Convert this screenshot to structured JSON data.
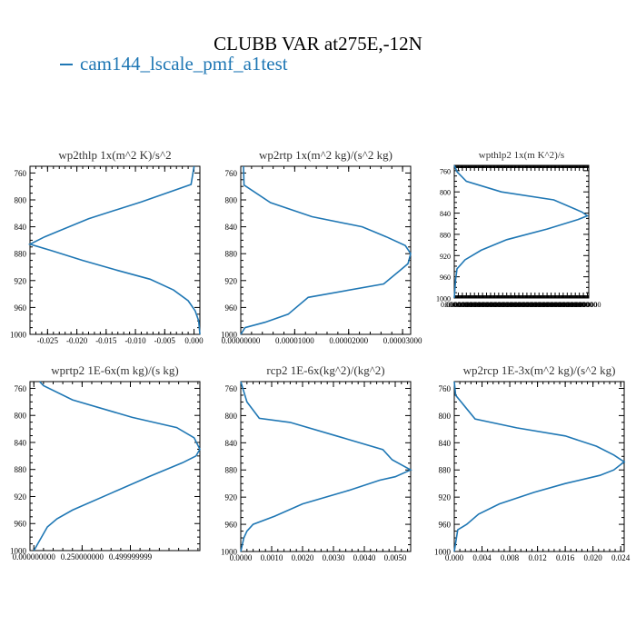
{
  "figure": {
    "title": "CLUBB VAR at275E,-12N",
    "legend_label": "cam144_lscale_pmf_a1test",
    "line_color": "#1f77b4"
  },
  "chart_data": [
    {
      "type": "line",
      "title": "wp2thlp  1x(m^2 K)/s^2",
      "ylim": [
        1000,
        750
      ],
      "yticks": [
        760,
        800,
        840,
        880,
        920,
        960,
        1000
      ],
      "xlim": [
        -0.028,
        0.001
      ],
      "xticks": [
        -0.025,
        -0.02,
        -0.015,
        -0.01,
        -0.005,
        0.0
      ],
      "xticklabels": [
        "-0.025",
        "-0.020",
        "-0.015",
        "-0.010",
        "-0.005",
        "0.000"
      ],
      "series": [
        {
          "x": [
            0.0,
            -0.0005,
            -0.009,
            -0.018,
            -0.0255,
            -0.028,
            -0.0245,
            -0.019,
            -0.013,
            -0.0075,
            -0.0035,
            -0.001,
            0.0002,
            0.0008,
            0.001
          ],
          "y": [
            750,
            777,
            803,
            828,
            855,
            866,
            875,
            890,
            905,
            918,
            934,
            950,
            965,
            980,
            1000
          ]
        }
      ]
    },
    {
      "type": "line",
      "title": "wp2rtp  1x(m^2 kg)/(s^2 kg)",
      "ylim": [
        1000,
        750
      ],
      "yticks": [
        760,
        800,
        840,
        880,
        920,
        960,
        1000
      ],
      "xlim": [
        0.0,
        3.15e-05
      ],
      "xticks": [
        0.0,
        1e-05,
        2e-05,
        3e-05
      ],
      "xticklabels": [
        "0.00000000",
        "0.00001000",
        "0.00002000",
        "0.00003000"
      ],
      "series": [
        {
          "x": [
            5e-07,
            6e-07,
            5.5e-06,
            1.32e-05,
            2.25e-05,
            2.7e-05,
            3.05e-05,
            3.15e-05,
            3.1e-05,
            2.95e-05,
            2.65e-05,
            1.25e-05,
            8.8e-06,
            4.5e-06,
            8e-07,
            0.0
          ],
          "y": [
            750,
            778,
            804,
            825,
            840,
            855,
            868,
            880,
            895,
            905,
            925,
            945,
            970,
            982,
            990,
            1000
          ]
        }
      ]
    },
    {
      "type": "line",
      "title": "wpthlp2  1x(m K^2)/s",
      "ylim": [
        1000,
        750
      ],
      "yticks": [
        760,
        800,
        840,
        880,
        920,
        960,
        1000
      ],
      "xlim": [
        0.0,
        1.0
      ],
      "xticks": [
        0.0,
        0.03,
        0.06,
        0.09,
        0.12,
        0.15,
        0.18,
        0.21,
        0.24,
        0.27,
        0.3,
        0.33,
        0.36,
        0.39,
        0.42,
        0.45,
        0.48,
        0.51,
        0.54,
        0.57,
        0.6,
        0.63,
        0.66,
        0.69,
        0.72,
        0.75,
        0.78,
        0.81,
        0.84,
        0.87,
        0.9,
        0.93,
        0.96,
        0.99
      ],
      "xticklabels": [
        "0.000000",
        "0.000000",
        "0.000000",
        "0.000000",
        "0.000000",
        "0.000000",
        "0.000000",
        "0.000000",
        "0.000000",
        "0.000000",
        "0.000000",
        "0.000000",
        "0.000000",
        "0.000000",
        "0.000000",
        "0.000000",
        "0.000000",
        "0.000000",
        "0.000000",
        "0.000000",
        "0.000000",
        "0.000000",
        "0.000000",
        "0.000000",
        "0.000000",
        "0.000000",
        "0.000000",
        "0.000000",
        "0.000000",
        "0.000000",
        "0.000000",
        "0.000000",
        "0.000000",
        "0.000000"
      ],
      "series": [
        {
          "x": [
            0.0,
            0.02,
            0.09,
            0.35,
            0.74,
            0.95,
            0.99,
            0.92,
            0.69,
            0.39,
            0.2,
            0.08,
            0.02,
            0.01,
            0.0
          ],
          "y": [
            750,
            762,
            780,
            800,
            815,
            838,
            845,
            852,
            870,
            890,
            910,
            928,
            945,
            965,
            1000
          ]
        }
      ]
    },
    {
      "type": "line",
      "title": "wprtp2  1E-6x(m kg)/(s kg)",
      "ylim": [
        1000,
        750
      ],
      "yticks": [
        760,
        800,
        840,
        880,
        920,
        960,
        1000
      ],
      "xlim": [
        -0.02,
        0.86
      ],
      "xticks": [
        0.0,
        0.25,
        0.5
      ],
      "xticklabels": [
        "0.000000000",
        "0.250000000",
        "0.499999999"
      ],
      "series": [
        {
          "x": [
            0.03,
            0.05,
            0.2,
            0.51,
            0.74,
            0.83,
            0.86,
            0.84,
            0.77,
            0.6,
            0.4,
            0.2,
            0.12,
            0.07,
            0.05,
            0.02,
            0.0
          ],
          "y": [
            750,
            756,
            777,
            803,
            818,
            833,
            850,
            860,
            870,
            890,
            915,
            940,
            953,
            965,
            975,
            990,
            1000
          ]
        }
      ]
    },
    {
      "type": "line",
      "title": "rcp2  1E-6x(kg^2)/(kg^2)",
      "ylim": [
        1000,
        750
      ],
      "yticks": [
        760,
        800,
        840,
        880,
        920,
        960,
        1000
      ],
      "xlim": [
        0.0,
        0.0055
      ],
      "xticks": [
        0.0,
        0.001,
        0.002,
        0.003,
        0.004,
        0.005
      ],
      "xticklabels": [
        "0.0000",
        "0.0010",
        "0.0020",
        "0.0030",
        "0.0040",
        "0.0050"
      ],
      "series": [
        {
          "x": [
            0.0,
            0.0002,
            0.0006,
            0.0016,
            0.0031,
            0.0046,
            0.0049,
            0.0055,
            0.005,
            0.0045,
            0.0035,
            0.002,
            0.0011,
            0.0004,
            0.0002,
            0.0001,
            0.0
          ],
          "y": [
            750,
            780,
            804,
            810,
            830,
            850,
            865,
            880,
            890,
            895,
            910,
            930,
            948,
            960,
            970,
            980,
            1000
          ]
        }
      ]
    },
    {
      "type": "line",
      "title": "wp2rcp  1E-3x(m^2 kg)/(s^2 kg)",
      "ylim": [
        1000,
        750
      ],
      "yticks": [
        760,
        800,
        840,
        880,
        920,
        960,
        1000
      ],
      "xlim": [
        0.0,
        0.0245
      ],
      "xticks": [
        0.0,
        0.004,
        0.008,
        0.012,
        0.016,
        0.02,
        0.024
      ],
      "xticklabels": [
        "0.000",
        "0.004",
        "0.008",
        "0.012",
        "0.016",
        "0.020",
        "0.024"
      ],
      "series": [
        {
          "x": [
            0.0,
            0.0002,
            0.003,
            0.009,
            0.016,
            0.0205,
            0.023,
            0.0245,
            0.023,
            0.021,
            0.016,
            0.0115,
            0.0065,
            0.0035,
            0.0018,
            0.0005,
            0.0
          ],
          "y": [
            750,
            770,
            805,
            818,
            830,
            845,
            858,
            868,
            880,
            888,
            900,
            913,
            930,
            945,
            960,
            968,
            1000
          ]
        }
      ]
    }
  ]
}
